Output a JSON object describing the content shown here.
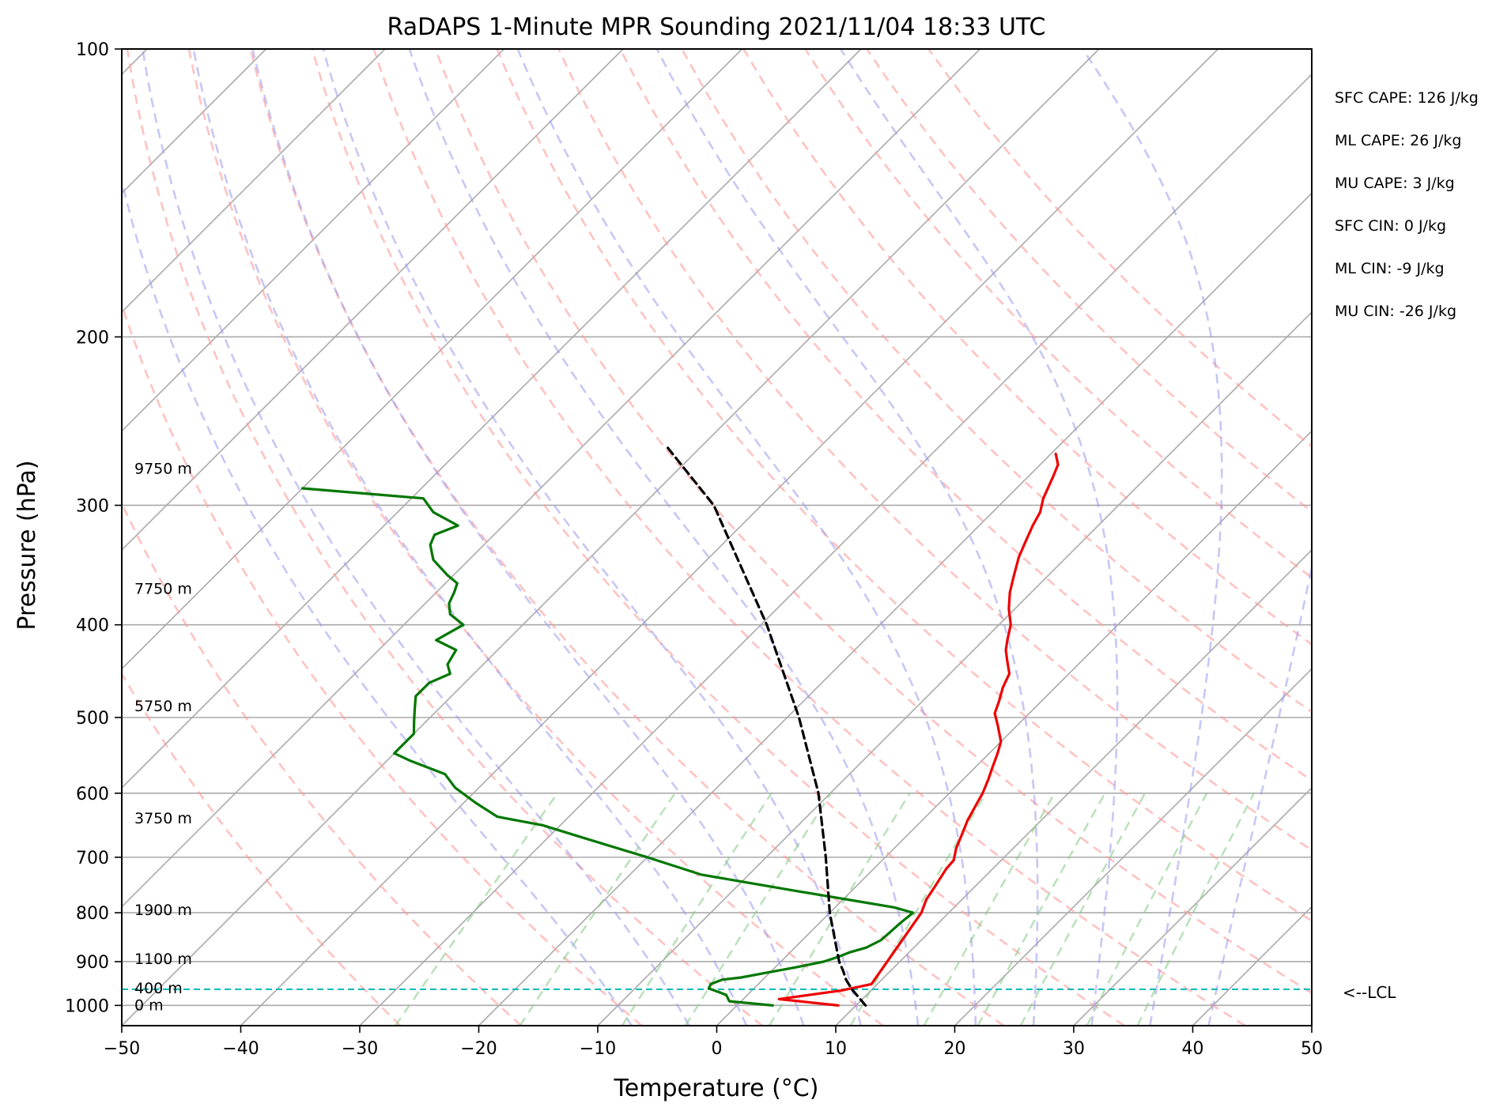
{
  "chart_data": {
    "type": "line",
    "title": "RaDAPS 1-Minute MPR Sounding 2021/11/04 18:33 UTC",
    "xlabel": "Temperature (°C)",
    "ylabel": "Pressure (hPa)",
    "xlim": [
      -50,
      50
    ],
    "ylim": [
      1050,
      100
    ],
    "log_pressure": true,
    "skew_t": true,
    "x_ticks": [
      -50,
      -40,
      -30,
      -20,
      -10,
      0,
      10,
      20,
      30,
      40,
      50
    ],
    "x_tick_labels": [
      "−50",
      "−40",
      "−30",
      "−20",
      "−10",
      "0",
      "10",
      "20",
      "30",
      "40",
      "50"
    ],
    "y_ticks": [
      100,
      200,
      300,
      400,
      500,
      600,
      700,
      800,
      900,
      1000
    ],
    "y_tick_labels": [
      "100",
      "200",
      "300",
      "400",
      "500",
      "600",
      "700",
      "800",
      "900",
      "1000"
    ],
    "grid": true,
    "series": [
      {
        "role": "temperature",
        "color": "#ee0000",
        "style": "solid",
        "points": [
          [
            8.5,
            1000
          ],
          [
            3.0,
            985
          ],
          [
            7.5,
            965
          ],
          [
            9.5,
            950
          ],
          [
            7.7,
            800
          ],
          [
            7.0,
            775
          ],
          [
            6.7,
            755
          ],
          [
            6.1,
            720
          ],
          [
            6.0,
            705
          ],
          [
            5.2,
            685
          ],
          [
            4.6,
            665
          ],
          [
            3.8,
            640
          ],
          [
            3.3,
            620
          ],
          [
            2.8,
            600
          ],
          [
            2.1,
            580
          ],
          [
            1.5,
            565
          ],
          [
            0.7,
            545
          ],
          [
            0.0,
            530
          ],
          [
            -1.6,
            510
          ],
          [
            -2.9,
            495
          ],
          [
            -3.5,
            482
          ],
          [
            -4.4,
            465
          ],
          [
            -5.0,
            450
          ],
          [
            -6.2,
            437
          ],
          [
            -7.3,
            425
          ],
          [
            -8.0,
            415
          ],
          [
            -9.0,
            400
          ],
          [
            -10.5,
            385
          ],
          [
            -11.8,
            370
          ],
          [
            -12.9,
            355
          ],
          [
            -14.0,
            340
          ],
          [
            -14.6,
            330
          ],
          [
            -15.5,
            315
          ],
          [
            -16.0,
            305
          ],
          [
            -16.9,
            295
          ],
          [
            -17.9,
            280
          ],
          [
            -18.5,
            272
          ],
          [
            -19.6,
            265
          ]
        ]
      },
      {
        "role": "dewpoint",
        "color": "#007700",
        "style": "solid",
        "points": [
          [
            3.0,
            1000
          ],
          [
            -1.0,
            990
          ],
          [
            -1.8,
            975
          ],
          [
            -3.8,
            960
          ],
          [
            -4.0,
            950
          ],
          [
            -3.4,
            940
          ],
          [
            -2.0,
            935
          ],
          [
            -0.4,
            925
          ],
          [
            1.8,
            912
          ],
          [
            3.6,
            900
          ],
          [
            4.4,
            890
          ],
          [
            5.0,
            880
          ],
          [
            6.0,
            870
          ],
          [
            6.6,
            855
          ],
          [
            6.7,
            840
          ],
          [
            6.8,
            820
          ],
          [
            7.0,
            800
          ],
          [
            5.0,
            790
          ],
          [
            -6.0,
            755
          ],
          [
            -14.0,
            730
          ],
          [
            -20.0,
            700
          ],
          [
            -27.0,
            668
          ],
          [
            -31.5,
            648
          ],
          [
            -36.0,
            635
          ],
          [
            -39.0,
            614
          ],
          [
            -42.0,
            592
          ],
          [
            -44.0,
            573
          ],
          [
            -48.0,
            555
          ],
          [
            -50.0,
            545
          ],
          [
            -50.0,
            520
          ],
          [
            -51.0,
            505
          ],
          [
            -52.0,
            490
          ],
          [
            -53.0,
            475
          ],
          [
            -53.0,
            460
          ],
          [
            -52.0,
            450
          ],
          [
            -53.0,
            440
          ],
          [
            -53.5,
            425
          ],
          [
            -56.0,
            415
          ],
          [
            -55.0,
            400
          ],
          [
            -57.0,
            390
          ],
          [
            -58.0,
            380
          ],
          [
            -58.5,
            370
          ],
          [
            -59.0,
            362
          ],
          [
            -60.5,
            355
          ],
          [
            -63.0,
            342
          ],
          [
            -64.5,
            330
          ],
          [
            -65.0,
            322
          ],
          [
            -63.8,
            315
          ],
          [
            -67.0,
            305
          ],
          [
            -69.0,
            295
          ],
          [
            -80.0,
            288
          ]
        ]
      },
      {
        "role": "parcel",
        "color": "#000000",
        "style": "dashed",
        "points": [
          [
            10.8,
            1000
          ],
          [
            8.3,
            962
          ],
          [
            7.0,
            940
          ],
          [
            6.0,
            920
          ],
          [
            4.9,
            900
          ],
          [
            0.0,
            800
          ],
          [
            -5.0,
            700
          ],
          [
            -11.0,
            600
          ],
          [
            -19.0,
            500
          ],
          [
            -29.5,
            400
          ],
          [
            -44.0,
            300
          ],
          [
            -53.0,
            260
          ]
        ]
      }
    ],
    "lcl_pressure": 962,
    "lcl_label": "<--LCL",
    "height_labels": [
      {
        "text": "9750 m",
        "p": 275
      },
      {
        "text": "7750 m",
        "p": 367
      },
      {
        "text": "5750 m",
        "p": 487
      },
      {
        "text": "3750 m",
        "p": 638
      },
      {
        "text": "1900 m",
        "p": 795
      },
      {
        "text": "1100 m",
        "p": 895
      },
      {
        "text": "400 m",
        "p": 960
      },
      {
        "text": "0 m",
        "p": 1000
      }
    ],
    "annotations": [
      "SFC CAPE: 126 J/kg",
      "ML CAPE: 26 J/kg",
      "MU CAPE: 3 J/kg",
      "SFC CIN: 0 J/kg",
      "ML CIN: -9 J/kg",
      "MU CIN: -26 J/kg"
    ],
    "background": {
      "isotherm_color": "#aaaaaa",
      "dry_adiabat_color": "#ff9999",
      "moist_adiabat_color": "#9999ee",
      "mixing_ratio_color": "#88cc88",
      "lcl_line_color": "#00bbbb"
    }
  }
}
